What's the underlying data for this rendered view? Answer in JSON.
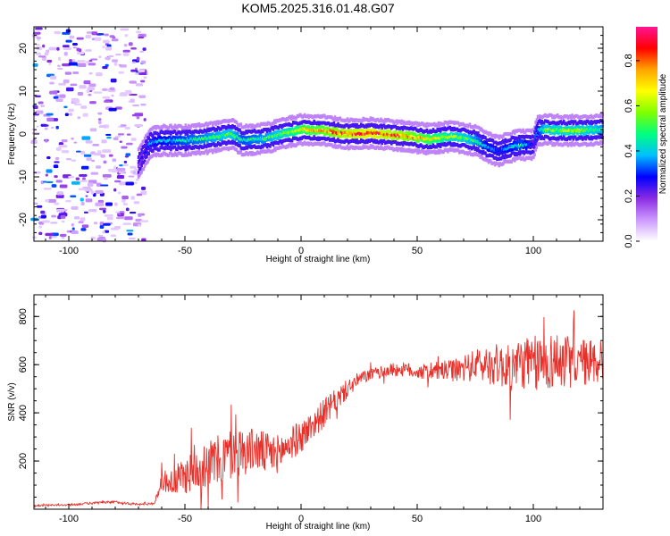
{
  "figure_title": "KOM5.2025.316.01.48.G07",
  "chart_data": [
    {
      "type": "heatmap",
      "xlabel": "Height of straight line (km)",
      "ylabel": "Frequency (Hz)",
      "xlim": [
        -115,
        130
      ],
      "ylim": [
        -25,
        25
      ],
      "x_ticks": [
        -100,
        -50,
        0,
        50,
        100
      ],
      "y_ticks": [
        -20,
        -10,
        0,
        10,
        20
      ],
      "colorbar": {
        "label": "Normalized spectral amplitude",
        "range": [
          0,
          0.95
        ],
        "ticks": [
          0.0,
          0.2,
          0.4,
          0.6,
          0.8
        ],
        "tick_labels": [
          "0.0",
          "0.2",
          "0.4",
          "0.6",
          "0.8"
        ],
        "colors": [
          "#ffffff",
          "#cc99ff",
          "#8a2be2",
          "#0000ff",
          "#00bfff",
          "#00ff7f",
          "#7fff00",
          "#ffff00",
          "#ffa500",
          "#ff0000",
          "#ff1493"
        ]
      },
      "noise_region_x": [
        -115,
        -67
      ],
      "ridge": {
        "x": [
          -70,
          -65,
          -60,
          -50,
          -40,
          -30,
          -25,
          -15,
          -5,
          0,
          10,
          20,
          30,
          45,
          55,
          65,
          75,
          80,
          85,
          90,
          95,
          100,
          102,
          105,
          115,
          125,
          130
        ],
        "freq": [
          -7,
          -2,
          -1.5,
          -1.5,
          -1,
          0,
          -1.5,
          -1,
          0.5,
          1,
          0.8,
          0,
          0.2,
          -0.5,
          -1.2,
          -0.5,
          -1.5,
          -3,
          -4,
          -3,
          -2.5,
          -2.5,
          1,
          1,
          0.8,
          0.9,
          1.2
        ],
        "amplitude": [
          0.25,
          0.35,
          0.4,
          0.45,
          0.5,
          0.55,
          0.45,
          0.5,
          0.6,
          0.7,
          0.75,
          0.85,
          0.9,
          0.8,
          0.7,
          0.6,
          0.5,
          0.4,
          0.35,
          0.4,
          0.45,
          0.3,
          0.4,
          0.55,
          0.6,
          0.55,
          0.5
        ]
      }
    },
    {
      "type": "line",
      "xlabel": "Height of straight line (km)",
      "ylabel": "SNR (v/v)",
      "xlim": [
        -115,
        130
      ],
      "ylim": [
        0,
        890
      ],
      "x_ticks": [
        -100,
        -50,
        0,
        50,
        100
      ],
      "y_ticks": [
        200,
        400,
        600,
        800
      ],
      "color": "#e8302a",
      "series": [
        {
          "name": "SNR",
          "x": [
            -115,
            -100,
            -90,
            -80,
            -70,
            -63,
            -60,
            -55,
            -50,
            -45,
            -40,
            -35,
            -30,
            -25,
            -20,
            -15,
            -10,
            -5,
            0,
            5,
            10,
            15,
            20,
            25,
            30,
            35,
            40,
            45,
            50,
            55,
            60,
            65,
            70,
            75,
            80,
            85,
            90,
            95,
            100,
            105,
            110,
            115,
            120,
            125,
            130
          ],
          "y": [
            15,
            18,
            25,
            30,
            20,
            25,
            120,
            110,
            140,
            170,
            190,
            200,
            230,
            240,
            250,
            230,
            230,
            270,
            300,
            350,
            400,
            450,
            500,
            540,
            560,
            570,
            580,
            580,
            570,
            570,
            575,
            575,
            580,
            600,
            600,
            600,
            580,
            610,
            600,
            610,
            620,
            610,
            610,
            610,
            620
          ]
        }
      ],
      "envelope_spread": [
        3,
        4,
        5,
        5,
        4,
        5,
        40,
        60,
        80,
        90,
        100,
        110,
        110,
        100,
        90,
        90,
        80,
        70,
        70,
        60,
        60,
        50,
        40,
        30,
        25,
        25,
        30,
        30,
        30,
        35,
        40,
        45,
        55,
        65,
        80,
        90,
        100,
        110,
        120,
        120,
        120,
        110,
        100,
        100,
        100
      ]
    }
  ]
}
